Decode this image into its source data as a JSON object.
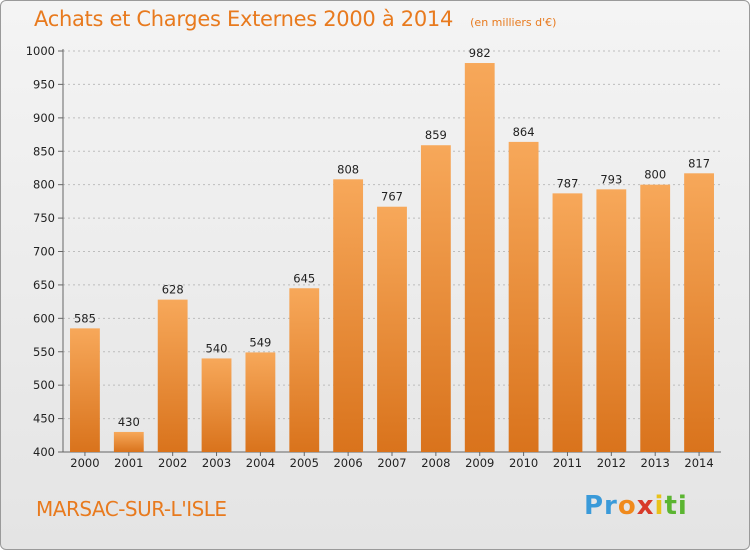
{
  "chart_data": {
    "type": "bar",
    "title": "Achats et Charges Externes 2000 à 2014",
    "subtitle": "(en milliers d'€)",
    "categories": [
      "2000",
      "2001",
      "2002",
      "2003",
      "2004",
      "2005",
      "2006",
      "2007",
      "2008",
      "2009",
      "2010",
      "2011",
      "2012",
      "2013",
      "2014"
    ],
    "values": [
      585,
      430,
      628,
      540,
      549,
      645,
      808,
      767,
      859,
      982,
      864,
      787,
      793,
      800,
      817
    ],
    "ylim": [
      400,
      1000
    ],
    "yticks": [
      400,
      450,
      500,
      550,
      600,
      650,
      700,
      750,
      800,
      850,
      900,
      950,
      1000
    ],
    "xlabel": "",
    "ylabel": "",
    "grid": true,
    "bar_color": "#f0902e"
  },
  "footer": {
    "city": "MARSAC-SUR-L'ISLE",
    "logo": [
      "Pr",
      "o",
      "x",
      "i",
      "ti"
    ]
  }
}
